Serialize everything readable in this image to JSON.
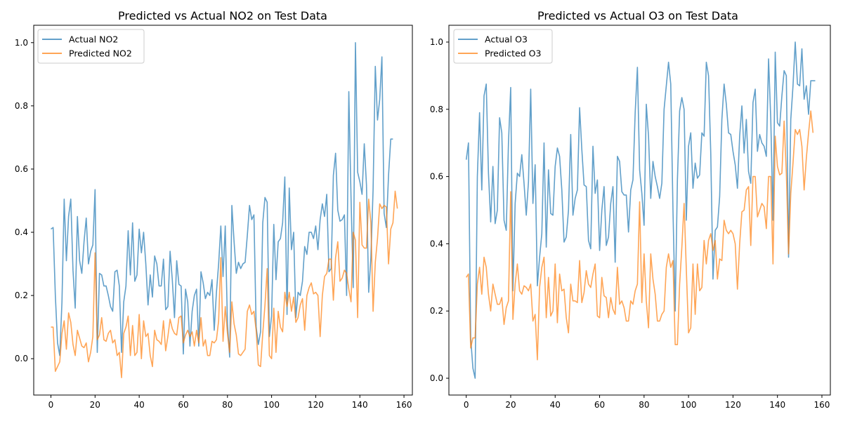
{
  "chart_data": [
    {
      "type": "line",
      "title": "Predicted vs Actual NO2 on Test Data",
      "xlim": [
        -7.8,
        163.8
      ],
      "ylim": [
        -0.115,
        1.055
      ],
      "xticks": [
        0,
        20,
        40,
        60,
        80,
        100,
        120,
        140,
        160
      ],
      "yticks": [
        0.0,
        0.2,
        0.4,
        0.6,
        0.8,
        1.0
      ],
      "legend_position": "upper-left",
      "series": [
        {
          "name": "Actual NO2",
          "color": "#1f77b4",
          "values": [
            0.41,
            0.415,
            0.2,
            0.05,
            0.01,
            0.18,
            0.505,
            0.31,
            0.45,
            0.505,
            0.28,
            0.16,
            0.45,
            0.31,
            0.27,
            0.37,
            0.445,
            0.3,
            0.34,
            0.36,
            0.535,
            0.02,
            0.27,
            0.265,
            0.23,
            0.23,
            0.2,
            0.165,
            0.15,
            0.275,
            0.28,
            0.23,
            0.02,
            0.18,
            0.23,
            0.405,
            0.265,
            0.43,
            0.245,
            0.265,
            0.41,
            0.335,
            0.4,
            0.3,
            0.17,
            0.265,
            0.195,
            0.325,
            0.3,
            0.23,
            0.23,
            0.315,
            0.155,
            0.165,
            0.34,
            0.25,
            0.13,
            0.31,
            0.235,
            0.23,
            0.015,
            0.22,
            0.18,
            0.04,
            0.15,
            0.2,
            0.22,
            0.04,
            0.275,
            0.24,
            0.19,
            0.21,
            0.2,
            0.25,
            0.09,
            0.21,
            0.3,
            0.42,
            0.26,
            0.42,
            0.11,
            0.005,
            0.485,
            0.37,
            0.27,
            0.305,
            0.285,
            0.3,
            0.305,
            0.39,
            0.485,
            0.44,
            0.455,
            0.1,
            0.045,
            0.085,
            0.43,
            0.51,
            0.495,
            0.07,
            0.135,
            0.425,
            0.25,
            0.37,
            0.38,
            0.43,
            0.575,
            0.14,
            0.54,
            0.345,
            0.4,
            0.13,
            0.21,
            0.2,
            0.245,
            0.355,
            0.33,
            0.4,
            0.4,
            0.38,
            0.42,
            0.345,
            0.44,
            0.49,
            0.45,
            0.52,
            0.275,
            0.285,
            0.58,
            0.65,
            0.47,
            0.435,
            0.44,
            0.455,
            0.2,
            0.845,
            0.51,
            0.225,
            1.0,
            0.59,
            0.56,
            0.52,
            0.68,
            0.55,
            0.21,
            0.32,
            0.535,
            0.925,
            0.755,
            0.82,
            0.955,
            0.46,
            0.415,
            0.58,
            0.695,
            0.695
          ]
        },
        {
          "name": "Predicted NO2",
          "color": "#ff7f0e",
          "values": [
            0.1,
            0.1,
            -0.04,
            -0.025,
            -0.01,
            0.08,
            0.12,
            0.03,
            0.145,
            0.115,
            0.045,
            0.01,
            0.09,
            0.065,
            0.04,
            0.035,
            0.05,
            -0.01,
            0.02,
            0.07,
            0.335,
            0.06,
            0.075,
            0.13,
            0.06,
            0.055,
            0.08,
            0.09,
            0.05,
            0.06,
            0.01,
            0.02,
            -0.06,
            0.08,
            0.1,
            0.135,
            0.01,
            0.105,
            0.01,
            0.02,
            0.14,
            0.0,
            0.12,
            0.07,
            0.08,
            0.01,
            -0.025,
            0.09,
            0.06,
            0.055,
            0.045,
            0.12,
            0.025,
            0.07,
            0.125,
            0.095,
            0.08,
            0.075,
            0.13,
            0.135,
            0.05,
            0.075,
            0.09,
            0.07,
            0.085,
            0.04,
            0.09,
            0.05,
            0.13,
            0.04,
            0.06,
            0.01,
            0.01,
            0.055,
            0.05,
            0.06,
            0.12,
            0.32,
            0.055,
            0.165,
            0.08,
            0.02,
            0.18,
            0.11,
            0.075,
            0.015,
            0.01,
            0.02,
            0.03,
            0.15,
            0.17,
            0.14,
            0.15,
            0.09,
            -0.02,
            -0.025,
            0.08,
            0.17,
            0.285,
            0.01,
            0.0,
            0.16,
            0.02,
            0.15,
            0.1,
            0.085,
            0.21,
            0.165,
            0.21,
            0.15,
            0.195,
            0.115,
            0.13,
            0.17,
            0.19,
            0.09,
            0.2,
            0.225,
            0.24,
            0.205,
            0.21,
            0.2,
            0.07,
            0.2,
            0.26,
            0.27,
            0.315,
            0.315,
            0.185,
            0.32,
            0.37,
            0.245,
            0.255,
            0.28,
            0.27,
            0.22,
            0.18,
            0.4,
            0.375,
            0.13,
            0.495,
            0.36,
            0.35,
            0.35,
            0.505,
            0.43,
            0.15,
            0.305,
            0.38,
            0.49,
            0.475,
            0.485,
            0.48,
            0.3,
            0.41,
            0.43,
            0.53,
            0.475
          ]
        }
      ]
    },
    {
      "type": "line",
      "title": "Predicted vs Actual O3 on Test Data",
      "xlim": [
        -7.8,
        163.8
      ],
      "ylim": [
        -0.05,
        1.05
      ],
      "xticks": [
        0,
        20,
        40,
        60,
        80,
        100,
        120,
        140,
        160
      ],
      "yticks": [
        0.0,
        0.2,
        0.4,
        0.6,
        0.8,
        1.0
      ],
      "legend_position": "upper-left",
      "series": [
        {
          "name": "Actual O3",
          "color": "#1f77b4",
          "values": [
            0.65,
            0.7,
            0.12,
            0.03,
            0.0,
            0.6,
            0.79,
            0.56,
            0.84,
            0.875,
            0.61,
            0.465,
            0.63,
            0.46,
            0.5,
            0.775,
            0.73,
            0.47,
            0.44,
            0.7,
            0.865,
            0.26,
            0.52,
            0.61,
            0.6,
            0.665,
            0.58,
            0.485,
            0.585,
            0.86,
            0.52,
            0.635,
            0.275,
            0.36,
            0.43,
            0.7,
            0.39,
            0.62,
            0.49,
            0.485,
            0.63,
            0.685,
            0.66,
            0.56,
            0.405,
            0.42,
            0.5,
            0.725,
            0.485,
            0.535,
            0.56,
            0.805,
            0.68,
            0.575,
            0.57,
            0.41,
            0.385,
            0.69,
            0.55,
            0.59,
            0.38,
            0.5,
            0.57,
            0.395,
            0.42,
            0.52,
            0.57,
            0.345,
            0.66,
            0.645,
            0.555,
            0.545,
            0.545,
            0.435,
            0.56,
            0.59,
            0.79,
            0.925,
            0.62,
            0.55,
            0.455,
            0.815,
            0.72,
            0.535,
            0.645,
            0.6,
            0.57,
            0.535,
            0.58,
            0.8,
            0.87,
            0.94,
            0.875,
            0.5,
            0.2,
            0.59,
            0.795,
            0.835,
            0.8,
            0.47,
            0.69,
            0.73,
            0.565,
            0.64,
            0.595,
            0.605,
            0.73,
            0.72,
            0.94,
            0.9,
            0.67,
            0.295,
            0.44,
            0.45,
            0.54,
            0.77,
            0.875,
            0.815,
            0.73,
            0.725,
            0.675,
            0.635,
            0.565,
            0.72,
            0.81,
            0.67,
            0.77,
            0.615,
            0.58,
            0.82,
            0.86,
            0.675,
            0.725,
            0.7,
            0.69,
            0.66,
            0.95,
            0.77,
            0.47,
            0.97,
            0.76,
            0.75,
            0.84,
            0.915,
            0.9,
            0.36,
            0.77,
            0.87,
            1.0,
            0.875,
            0.87,
            0.98,
            0.83,
            0.87,
            0.785,
            0.885,
            0.885,
            0.885
          ]
        },
        {
          "name": "Predicted O3",
          "color": "#ff7f0e",
          "values": [
            0.3,
            0.31,
            0.09,
            0.12,
            0.12,
            0.28,
            0.33,
            0.25,
            0.36,
            0.33,
            0.25,
            0.2,
            0.28,
            0.25,
            0.22,
            0.22,
            0.24,
            0.16,
            0.21,
            0.23,
            0.555,
            0.175,
            0.28,
            0.34,
            0.26,
            0.25,
            0.275,
            0.27,
            0.26,
            0.28,
            0.17,
            0.19,
            0.055,
            0.27,
            0.33,
            0.36,
            0.18,
            0.3,
            0.185,
            0.2,
            0.34,
            0.165,
            0.31,
            0.26,
            0.265,
            0.18,
            0.135,
            0.28,
            0.23,
            0.23,
            0.225,
            0.35,
            0.225,
            0.255,
            0.32,
            0.28,
            0.27,
            0.31,
            0.34,
            0.185,
            0.18,
            0.3,
            0.245,
            0.24,
            0.18,
            0.24,
            0.205,
            0.19,
            0.33,
            0.22,
            0.23,
            0.21,
            0.17,
            0.17,
            0.23,
            0.22,
            0.26,
            0.28,
            0.525,
            0.225,
            0.37,
            0.23,
            0.15,
            0.37,
            0.295,
            0.25,
            0.17,
            0.17,
            0.19,
            0.2,
            0.33,
            0.37,
            0.33,
            0.35,
            0.1,
            0.1,
            0.28,
            0.39,
            0.52,
            0.325,
            0.135,
            0.15,
            0.34,
            0.19,
            0.34,
            0.26,
            0.27,
            0.41,
            0.34,
            0.41,
            0.43,
            0.38,
            0.41,
            0.295,
            0.355,
            0.35,
            0.47,
            0.44,
            0.43,
            0.44,
            0.43,
            0.4,
            0.265,
            0.4,
            0.495,
            0.5,
            0.56,
            0.57,
            0.395,
            0.6,
            0.6,
            0.48,
            0.5,
            0.52,
            0.51,
            0.445,
            0.6,
            0.6,
            0.34,
            0.72,
            0.63,
            0.605,
            0.61,
            0.765,
            0.61,
            0.37,
            0.55,
            0.64,
            0.74,
            0.725,
            0.74,
            0.69,
            0.56,
            0.655,
            0.73,
            0.795,
            0.73
          ]
        }
      ]
    }
  ]
}
